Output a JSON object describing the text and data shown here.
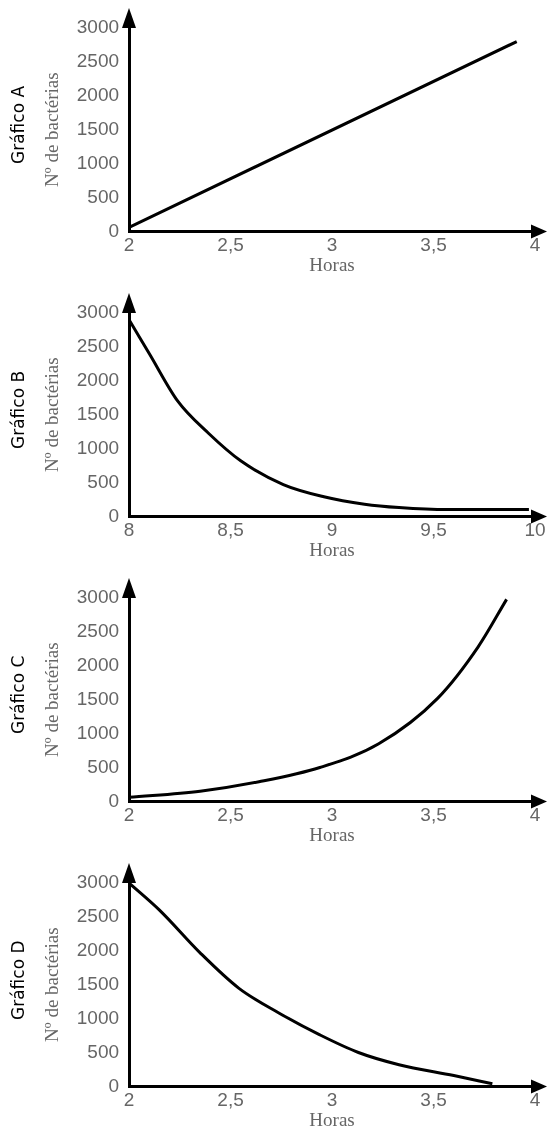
{
  "chart_data": [
    {
      "type": "line",
      "title": "Gráfico A",
      "xlabel": "Horas",
      "ylabel": "Nº de bactérias",
      "x": [
        2,
        3.91
      ],
      "values": [
        60,
        2800
      ],
      "color": "#000000",
      "xlim": [
        2,
        4
      ],
      "ylim": [
        0,
        3000
      ],
      "xticks": [
        2,
        {
          "value": 2.5,
          "label": "2,5"
        },
        3,
        {
          "value": 3.5,
          "label": "3,5"
        },
        4
      ],
      "yticks": [
        0,
        500,
        1000,
        1500,
        2000,
        2500,
        3000
      ],
      "marker": "none"
    },
    {
      "type": "line",
      "title": "Gráfico B",
      "xlabel": "Horas",
      "ylabel": "Nº de bactérias",
      "x": [
        8,
        8.1,
        8.24,
        8.39,
        8.55,
        8.76,
        8.96,
        9.16,
        9.33,
        9.57,
        9.97
      ],
      "values": [
        2900,
        2400,
        1700,
        1230,
        820,
        470,
        290,
        180,
        130,
        100,
        100
      ],
      "color": "#000000",
      "xlim": [
        8,
        10
      ],
      "ylim": [
        0,
        3000
      ],
      "xticks": [
        8,
        {
          "value": 8.5,
          "label": "8,5"
        },
        9,
        {
          "value": 9.5,
          "label": "9,5"
        },
        10
      ],
      "yticks": [
        0,
        500,
        1000,
        1500,
        2000,
        2500,
        3000
      ],
      "marker": "none"
    },
    {
      "type": "line",
      "title": "Gráfico C",
      "xlabel": "Horas",
      "ylabel": "Nº de bactérias",
      "x": [
        2,
        2.35,
        2.64,
        2.94,
        3.23,
        3.52,
        3.72,
        3.86
      ],
      "values": [
        60,
        150,
        290,
        500,
        850,
        1520,
        2280,
        2980
      ],
      "color": "#000000",
      "xlim": [
        2,
        4
      ],
      "ylim": [
        0,
        3000
      ],
      "xticks": [
        2,
        {
          "value": 2.5,
          "label": "2,5"
        },
        3,
        {
          "value": 3.5,
          "label": "3,5"
        },
        4
      ],
      "yticks": [
        0,
        500,
        1000,
        1500,
        2000,
        2500,
        3000
      ],
      "marker": "none"
    },
    {
      "type": "line",
      "title": "Gráfico D",
      "xlabel": "Horas",
      "ylabel": "Nº de bactérias",
      "x": [
        2,
        2.15,
        2.35,
        2.54,
        2.74,
        2.94,
        3.13,
        3.33,
        3.6,
        3.79
      ],
      "values": [
        3000,
        2600,
        1970,
        1450,
        1080,
        760,
        500,
        320,
        160,
        40
      ],
      "color": "#000000",
      "xlim": [
        2,
        4
      ],
      "ylim": [
        0,
        3000
      ],
      "xticks": [
        2,
        {
          "value": 2.5,
          "label": "2,5"
        },
        3,
        {
          "value": 3.5,
          "label": "3,5"
        },
        4
      ],
      "yticks": [
        0,
        500,
        1000,
        1500,
        2000,
        2500,
        3000
      ],
      "marker": "none"
    }
  ]
}
